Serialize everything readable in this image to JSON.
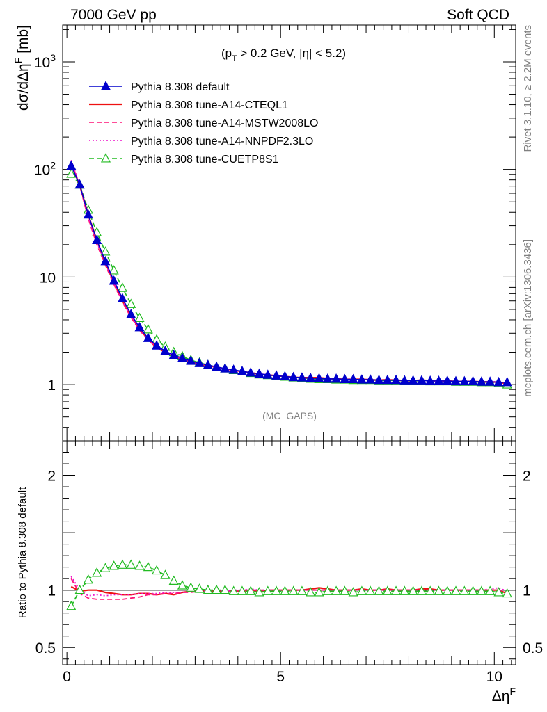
{
  "header": {
    "left_label": "7000 GeV pp",
    "right_label": "Soft QCD"
  },
  "side_labels": {
    "rivet": "Rivet 3.1.10, ≥ 2.2M events",
    "mcplots": "mcplots.cern.ch [arXiv:1306.3436]"
  },
  "chart_data": [
    {
      "type": "line",
      "panel": "main",
      "cut_label": "(p_T > 0.2 GeV, |η| < 5.2)",
      "cut_text": {
        "open": "(p",
        "sub": "T",
        "rest": " > 0.2 GeV, |η| < 5.2)"
      },
      "watermark": "(MC_GAPS)",
      "ylabel": "dσ/dΔη^F [mb]",
      "ylabel_text": {
        "main": "dσ/dΔη",
        "sup": "F",
        "unit": " [mb]"
      },
      "xlabel": "Δη^F",
      "xlabel_text": {
        "main": "Δη",
        "sup": "F"
      },
      "yscale": "log",
      "xlim": [
        -0.1,
        10.5
      ],
      "ylim": [
        0.3,
        2200
      ],
      "ytick_labels": [
        {
          "value": 1,
          "label": "1"
        },
        {
          "value": 10,
          "label": "10"
        },
        {
          "value": 100,
          "base": "10",
          "exp": "2"
        },
        {
          "value": 1000,
          "base": "10",
          "exp": "3"
        }
      ],
      "legend_position": "top-left",
      "x": [
        0.1,
        0.3,
        0.5,
        0.7,
        0.9,
        1.1,
        1.3,
        1.5,
        1.7,
        1.9,
        2.1,
        2.3,
        2.5,
        2.7,
        2.9,
        3.1,
        3.3,
        3.5,
        3.7,
        3.9,
        4.1,
        4.3,
        4.5,
        4.7,
        4.9,
        5.1,
        5.3,
        5.5,
        5.7,
        5.9,
        6.1,
        6.3,
        6.5,
        6.7,
        6.9,
        7.1,
        7.3,
        7.5,
        7.7,
        7.9,
        8.1,
        8.3,
        8.5,
        8.7,
        8.9,
        9.1,
        9.3,
        9.5,
        9.7,
        9.9,
        10.1,
        10.3
      ],
      "series": [
        {
          "name": "Pythia 8.308 default",
          "color": "#0000cc",
          "style": "solid",
          "marker": "filled-triangle",
          "values": [
            108,
            72,
            38,
            22,
            14,
            9.2,
            6.3,
            4.5,
            3.4,
            2.7,
            2.3,
            2.05,
            1.88,
            1.76,
            1.66,
            1.58,
            1.52,
            1.46,
            1.41,
            1.37,
            1.33,
            1.29,
            1.26,
            1.23,
            1.21,
            1.19,
            1.17,
            1.16,
            1.15,
            1.14,
            1.13,
            1.13,
            1.12,
            1.12,
            1.11,
            1.11,
            1.1,
            1.1,
            1.1,
            1.09,
            1.09,
            1.09,
            1.08,
            1.08,
            1.08,
            1.07,
            1.07,
            1.07,
            1.06,
            1.06,
            1.05,
            1.05
          ]
        },
        {
          "name": "Pythia 8.308 tune-A14-CTEQL1",
          "color": "#ee1111",
          "style": "solid",
          "marker": "none",
          "values": [
            112,
            71,
            38,
            22,
            13.6,
            8.9,
            6.0,
            4.3,
            3.3,
            2.62,
            2.21,
            2.0,
            1.84,
            1.73,
            1.64,
            1.56,
            1.5,
            1.45,
            1.4,
            1.36,
            1.32,
            1.29,
            1.25,
            1.23,
            1.21,
            1.19,
            1.17,
            1.16,
            1.16,
            1.16,
            1.14,
            1.13,
            1.12,
            1.12,
            1.12,
            1.11,
            1.1,
            1.11,
            1.1,
            1.09,
            1.09,
            1.1,
            1.09,
            1.08,
            1.08,
            1.07,
            1.07,
            1.07,
            1.06,
            1.06,
            1.05,
            1.02
          ]
        },
        {
          "name": "Pythia 8.308 tune-A14-MSTW2008LO",
          "color": "#ff1177",
          "style": "dashed",
          "marker": "none",
          "values": [
            120,
            70,
            35,
            20,
            12.9,
            8.5,
            5.8,
            4.2,
            3.2,
            2.6,
            2.22,
            2.0,
            1.83,
            1.72,
            1.64,
            1.56,
            1.5,
            1.45,
            1.4,
            1.36,
            1.32,
            1.29,
            1.26,
            1.23,
            1.21,
            1.19,
            1.17,
            1.16,
            1.15,
            1.14,
            1.13,
            1.13,
            1.12,
            1.12,
            1.11,
            1.11,
            1.1,
            1.1,
            1.1,
            1.09,
            1.09,
            1.09,
            1.08,
            1.08,
            1.08,
            1.07,
            1.07,
            1.07,
            1.06,
            1.06,
            1.05,
            1.03
          ]
        },
        {
          "name": "Pythia 8.308 tune-A14-NNPDF2.3LO",
          "color": "#ee11cc",
          "style": "dotted",
          "marker": "none",
          "values": [
            122,
            72,
            36,
            21,
            13.3,
            8.8,
            6.0,
            4.3,
            3.3,
            2.62,
            2.23,
            2.02,
            1.85,
            1.73,
            1.64,
            1.56,
            1.51,
            1.45,
            1.4,
            1.36,
            1.32,
            1.29,
            1.26,
            1.23,
            1.21,
            1.19,
            1.17,
            1.16,
            1.15,
            1.14,
            1.13,
            1.13,
            1.12,
            1.12,
            1.11,
            1.11,
            1.1,
            1.1,
            1.1,
            1.09,
            1.09,
            1.09,
            1.08,
            1.08,
            1.08,
            1.07,
            1.07,
            1.07,
            1.06,
            1.07,
            1.06,
            1.04
          ]
        },
        {
          "name": "Pythia 8.308 tune-CUETP8S1",
          "color": "#22bb22",
          "style": "dashed",
          "marker": "open-triangle",
          "values": [
            91,
            72,
            42,
            26,
            17.2,
            11.5,
            7.9,
            5.6,
            4.15,
            3.25,
            2.62,
            2.24,
            2.0,
            1.83,
            1.69,
            1.6,
            1.52,
            1.46,
            1.41,
            1.36,
            1.32,
            1.28,
            1.24,
            1.22,
            1.2,
            1.18,
            1.16,
            1.15,
            1.13,
            1.12,
            1.12,
            1.11,
            1.11,
            1.1,
            1.1,
            1.1,
            1.09,
            1.09,
            1.09,
            1.08,
            1.08,
            1.08,
            1.07,
            1.07,
            1.07,
            1.06,
            1.06,
            1.06,
            1.05,
            1.05,
            1.03,
            1.0
          ]
        }
      ]
    },
    {
      "type": "line",
      "panel": "ratio",
      "ylabel": "Ratio to Pythia 8.308 default",
      "xlabel": "Δη^F",
      "ylim": [
        0.35,
        2.3
      ],
      "xlim": [
        -0.1,
        10.5
      ],
      "ytick_labels": [
        {
          "value": 0.5,
          "label": "0.5"
        },
        {
          "value": 1,
          "label": "1"
        },
        {
          "value": 2,
          "label": "2"
        }
      ],
      "xtick_labels": [
        {
          "value": 0,
          "label": "0"
        },
        {
          "value": 5,
          "label": "5"
        },
        {
          "value": 10,
          "label": "10"
        }
      ],
      "reference": 1,
      "x": [
        0.1,
        0.3,
        0.5,
        0.7,
        0.9,
        1.1,
        1.3,
        1.5,
        1.7,
        1.9,
        2.1,
        2.3,
        2.5,
        2.7,
        2.9,
        3.1,
        3.3,
        3.5,
        3.7,
        3.9,
        4.1,
        4.3,
        4.5,
        4.7,
        4.9,
        5.1,
        5.3,
        5.5,
        5.7,
        5.9,
        6.1,
        6.3,
        6.5,
        6.7,
        6.9,
        7.1,
        7.3,
        7.5,
        7.7,
        7.9,
        8.1,
        8.3,
        8.5,
        8.7,
        8.9,
        9.1,
        9.3,
        9.5,
        9.7,
        9.9,
        10.1,
        10.3
      ],
      "series": [
        {
          "name": "Pythia 8.308 tune-A14-CTEQL1",
          "color": "#ee1111",
          "style": "solid",
          "values": [
            1.03,
            0.99,
            1.0,
            1.0,
            0.98,
            0.97,
            0.96,
            0.96,
            0.97,
            0.97,
            0.96,
            0.97,
            0.96,
            0.98,
            0.99,
            0.99,
            0.99,
            0.99,
            0.99,
            0.99,
            0.99,
            1.0,
            0.99,
            1.0,
            1.0,
            1.0,
            1.0,
            1.0,
            1.01,
            1.02,
            1.01,
            1.0,
            1.0,
            1.0,
            1.01,
            1.0,
            1.0,
            1.01,
            1.0,
            1.0,
            1.0,
            1.01,
            1.01,
            1.0,
            1.0,
            1.0,
            1.0,
            1.0,
            1.0,
            1.0,
            1.0,
            0.97
          ]
        },
        {
          "name": "Pythia 8.308 tune-A14-MSTW2008LO",
          "color": "#ff1177",
          "style": "dashed",
          "values": [
            1.1,
            0.97,
            0.93,
            0.92,
            0.92,
            0.92,
            0.92,
            0.93,
            0.94,
            0.96,
            0.96,
            0.97,
            0.97,
            0.98,
            0.98,
            0.99,
            0.99,
            0.99,
            0.99,
            0.99,
            1.0,
            1.0,
            1.0,
            1.0,
            1.0,
            1.0,
            1.0,
            1.0,
            1.0,
            1.0,
            1.0,
            1.0,
            1.0,
            1.0,
            1.0,
            1.0,
            1.0,
            1.0,
            1.0,
            1.0,
            1.0,
            1.0,
            1.0,
            1.0,
            1.0,
            1.0,
            1.0,
            1.0,
            1.0,
            1.0,
            1.0,
            0.98
          ]
        },
        {
          "name": "Pythia 8.308 tune-A14-NNPDF2.3LO",
          "color": "#ee11cc",
          "style": "dotted",
          "values": [
            1.12,
            1.0,
            0.95,
            0.96,
            0.95,
            0.96,
            0.96,
            0.96,
            0.97,
            0.97,
            0.97,
            0.98,
            0.98,
            0.98,
            0.99,
            0.99,
            0.99,
            1.0,
            0.99,
            1.0,
            1.0,
            1.01,
            1.0,
            1.0,
            1.0,
            1.0,
            1.0,
            1.0,
            1.0,
            1.0,
            1.0,
            1.0,
            1.0,
            1.0,
            1.0,
            1.0,
            1.0,
            1.0,
            1.0,
            1.0,
            1.0,
            1.0,
            1.0,
            1.0,
            1.0,
            1.0,
            1.0,
            1.0,
            1.0,
            1.01,
            1.02,
            0.99
          ]
        },
        {
          "name": "Pythia 8.308 tune-CUETP8S1",
          "color": "#22bb22",
          "style": "dashed",
          "marker": "open-triangle",
          "values": [
            0.86,
            1.0,
            1.09,
            1.15,
            1.19,
            1.21,
            1.22,
            1.22,
            1.21,
            1.2,
            1.17,
            1.13,
            1.08,
            1.04,
            1.02,
            1.01,
            1.0,
            1.0,
            1.0,
            0.99,
            0.99,
            0.99,
            0.98,
            0.99,
            0.99,
            0.99,
            0.99,
            0.99,
            0.98,
            0.98,
            0.99,
            0.99,
            0.99,
            0.98,
            0.99,
            0.99,
            0.99,
            0.99,
            0.99,
            0.99,
            0.99,
            0.99,
            0.99,
            0.99,
            0.99,
            0.99,
            0.99,
            0.99,
            0.99,
            0.99,
            0.98,
            0.97
          ]
        }
      ]
    }
  ]
}
